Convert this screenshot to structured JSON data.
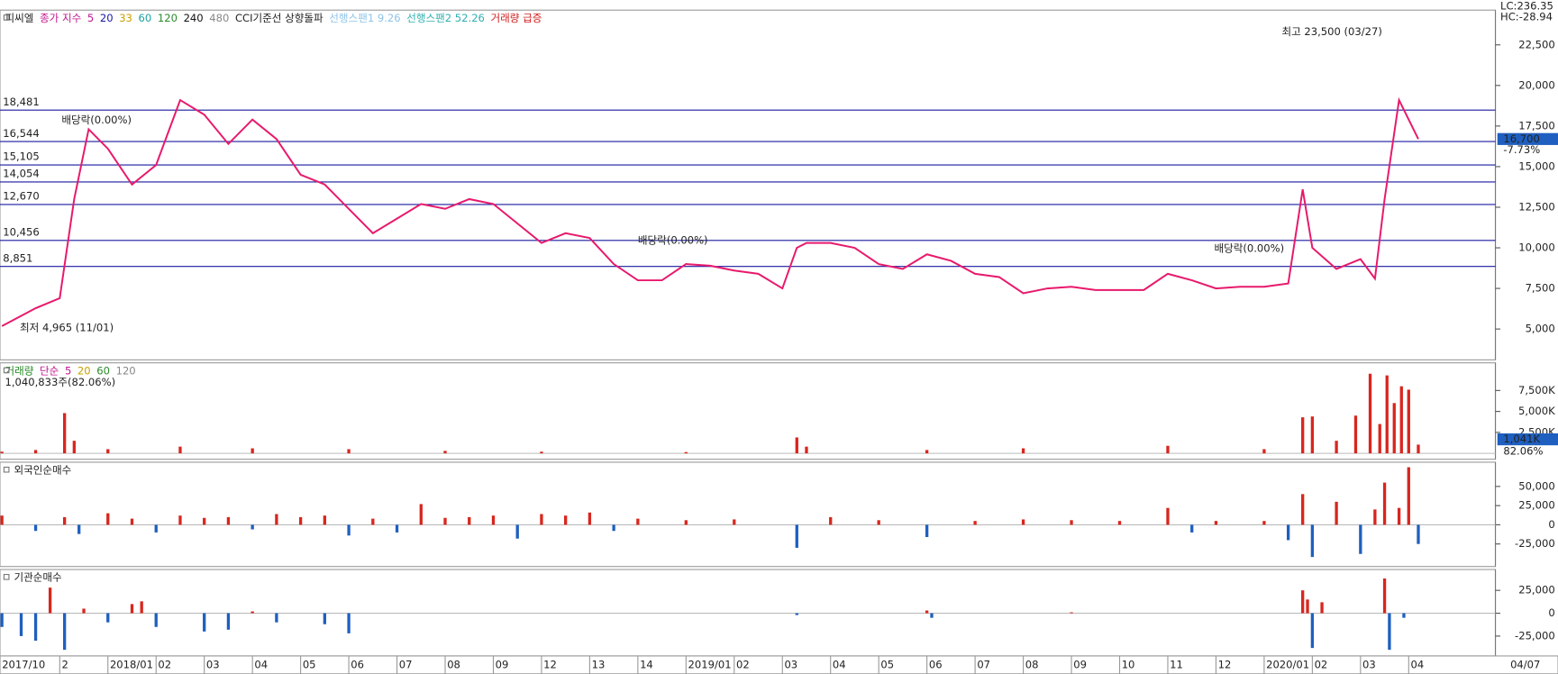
{
  "chart_data": [
    {
      "type": "line",
      "header": [
        {
          "text": "피씨엘",
          "color": "#222222"
        },
        {
          "text": "종가 지수",
          "color": "#c0148c"
        },
        {
          "text": "5",
          "color": "#c0148c"
        },
        {
          "text": "20",
          "color": "#1a1aa0"
        },
        {
          "text": "33",
          "color": "#c8a000"
        },
        {
          "text": "60",
          "color": "#1aa0a0"
        },
        {
          "text": "120",
          "color": "#2a8a2a"
        },
        {
          "text": "240",
          "color": "#111111"
        },
        {
          "text": "480",
          "color": "#888888"
        },
        {
          "text": "CCI기준선 상향돌파",
          "color": "#222222"
        },
        {
          "text": "선행스팬1 9.26",
          "color": "#8fc4e8"
        },
        {
          "text": "선행스팬2 52.26",
          "color": "#30b0b0"
        },
        {
          "text": "거래량 급증",
          "color": "#d02020"
        }
      ],
      "lc_label": "LC:236.35",
      "hc_label": "HC:-28.94",
      "x": [
        0.8,
        1.5,
        2.0,
        2.3,
        2.6,
        3.0,
        3.5,
        4.0,
        4.5,
        5.0,
        5.5,
        6.0,
        6.5,
        7.0,
        7.5,
        8.0,
        8.5,
        9.0,
        9.5,
        10.0,
        10.5,
        11.0,
        11.5,
        12.0,
        12.5,
        13.0,
        13.5,
        14.0,
        14.5,
        15.0,
        15.5,
        16.0,
        16.5,
        17.0,
        17.3,
        17.5,
        18.0,
        18.5,
        19.0,
        19.5,
        20.0,
        20.5,
        21.0,
        21.5,
        22.0,
        22.5,
        23.0,
        23.5,
        24.0,
        24.5,
        25.0,
        25.5,
        26.0,
        26.5,
        27.0,
        27.5,
        27.8,
        28.0,
        28.5,
        29.0,
        29.3,
        29.5,
        29.8,
        30.0,
        30.2
      ],
      "series": [
        {
          "name": "5",
          "color": "#e8196c",
          "values": [
            5180,
            6280,
            6900,
            13000,
            17300,
            16100,
            13900,
            15100,
            19100,
            18200,
            16400,
            17900,
            16700,
            14500,
            13900,
            12400,
            10900,
            11800,
            12700,
            12400,
            13000,
            12700,
            11500,
            10300,
            10900,
            10600,
            9000,
            8000,
            8000,
            9000,
            8900,
            8600,
            8400,
            7500,
            10000,
            10300,
            10300,
            10000,
            9000,
            8700,
            9600,
            9200,
            8400,
            8200,
            7200,
            7500,
            7600,
            7400,
            7400,
            7400,
            8400,
            8000,
            7500,
            7600,
            7600,
            7800,
            13600,
            10000,
            8700,
            9300,
            8100,
            13000,
            19100,
            17900,
            16700
          ]
        }
      ],
      "xlim": [
        0.76,
        31.8
      ],
      "ylim": [
        3100,
        24640
      ],
      "yticks": [
        {
          "value": 5000,
          "label": "5,000"
        },
        {
          "value": 7500,
          "label": "7,500"
        },
        {
          "value": 10000,
          "label": "10,000"
        },
        {
          "value": 12500,
          "label": "12,500"
        },
        {
          "value": 15000,
          "label": "15,000"
        },
        {
          "value": 17500,
          "label": "17,500"
        },
        {
          "value": 20000,
          "label": "20,000"
        },
        {
          "value": 22500,
          "label": "22,500"
        }
      ],
      "levels": [
        {
          "value": 18481,
          "label": "18,481"
        },
        {
          "value": 16544,
          "label": "16,544"
        },
        {
          "value": 15105,
          "label": "15,105"
        },
        {
          "value": 14054,
          "label": "14,054"
        },
        {
          "value": 12670,
          "label": "12,670"
        },
        {
          "value": 10456,
          "label": "10,456"
        },
        {
          "value": 8851,
          "label": "8,851"
        }
      ],
      "level_color": "#1a1aa0",
      "last_price": {
        "value": 16700,
        "label": "16,700"
      },
      "change": "-7.73%",
      "high_label": "최고 23,500 (03/27)",
      "low_label": "최저 4,965 (11/01)",
      "ex_dividend": [
        "배당락(0.00%)",
        "배당락(0.00%)",
        "배당락(0.00%)"
      ]
    },
    {
      "type": "bar",
      "header": [
        {
          "text": "거래량",
          "color": "#2a8a2a"
        },
        {
          "text": "단순",
          "color": "#c0148c"
        },
        {
          "text": "5",
          "color": "#c0148c"
        },
        {
          "text": "20",
          "color": "#c8a000"
        },
        {
          "text": "60",
          "color": "#2a8a2a"
        },
        {
          "text": "120",
          "color": "#888888"
        }
      ],
      "subtitle": "1,040,833주(82.06%)",
      "last_tag": "1,041K",
      "last_ratio": "82.06%",
      "color": "#d8261e",
      "x": [
        0.8,
        1.5,
        2.1,
        2.3,
        3.0,
        4.5,
        6.0,
        8.0,
        10.0,
        12.0,
        15.0,
        17.3,
        17.5,
        20.0,
        22.0,
        25.0,
        27.0,
        27.8,
        28.0,
        28.5,
        28.9,
        29.2,
        29.4,
        29.55,
        29.7,
        29.85,
        30.0,
        30.2
      ],
      "values": [
        200,
        400,
        4800,
        1500,
        500,
        800,
        600,
        500,
        300,
        200,
        150,
        1900,
        800,
        400,
        600,
        900,
        500,
        4300,
        4400,
        1500,
        4500,
        9500,
        3500,
        9300,
        6000,
        8000,
        7600,
        1041
      ],
      "xlim": [
        0.76,
        31.8
      ],
      "ylim": [
        -700,
        10800
      ],
      "yticks": [
        {
          "value": 2500,
          "label": "2,500K"
        },
        {
          "value": 5000,
          "label": "5,000K"
        },
        {
          "value": 7500,
          "label": "7,500K"
        }
      ]
    },
    {
      "type": "bar",
      "title": "외국인순매수",
      "title_color": "#d02020",
      "up_color": "#d8261e",
      "down_color": "#1f5fbf",
      "x": [
        0.8,
        1.5,
        2.1,
        2.4,
        3.0,
        3.5,
        4.0,
        4.5,
        5.0,
        5.5,
        6.0,
        6.5,
        7.0,
        7.5,
        8.0,
        8.5,
        9.0,
        9.5,
        10.0,
        10.5,
        11.0,
        11.5,
        12.0,
        12.5,
        13.0,
        13.5,
        14.0,
        15.0,
        16.0,
        17.3,
        18.0,
        19.0,
        20.0,
        21.0,
        22.0,
        23.0,
        24.0,
        25.0,
        25.5,
        26.0,
        27.0,
        27.5,
        27.8,
        28.0,
        28.5,
        29.0,
        29.3,
        29.5,
        29.8,
        30.0,
        30.2
      ],
      "values": [
        12000,
        -8000,
        10000,
        -12000,
        15000,
        8000,
        -10000,
        12000,
        9000,
        10000,
        -6000,
        14000,
        10000,
        12000,
        -14000,
        8000,
        -10000,
        27000,
        9000,
        10000,
        12000,
        -18000,
        14000,
        12000,
        16000,
        -8000,
        8000,
        6000,
        7000,
        -30000,
        10000,
        6000,
        -16000,
        5000,
        7000,
        6000,
        5000,
        22000,
        -10000,
        5000,
        5000,
        -20000,
        40000,
        -42000,
        30000,
        -38000,
        20000,
        55000,
        22000,
        75000,
        -25000
      ],
      "xlim": [
        0.76,
        31.8
      ],
      "ylim": [
        -54400,
        81600
      ],
      "yticks": [
        {
          "value": -25000,
          "label": "-25,000"
        },
        0,
        {
          "value": 25000,
          "label": "25,000"
        },
        {
          "value": 50000,
          "label": "50,000"
        }
      ]
    },
    {
      "type": "bar",
      "title": "기관순매수",
      "title_color": "#d02020",
      "up_color": "#d8261e",
      "down_color": "#1f5fbf",
      "x": [
        0.8,
        1.2,
        1.5,
        1.8,
        2.1,
        2.5,
        3.0,
        3.5,
        3.7,
        4.0,
        5.0,
        5.5,
        6.0,
        6.5,
        7.5,
        8.0,
        17.3,
        20.0,
        20.1,
        23.0,
        27.8,
        27.9,
        28.0,
        28.2,
        29.5,
        29.6,
        29.9
      ],
      "values": [
        -15000,
        -25000,
        -30000,
        28000,
        -40000,
        5000,
        -10000,
        10000,
        13000,
        -15000,
        -20000,
        -18000,
        2000,
        -10000,
        -12000,
        -22000,
        -2000,
        3000,
        -5000,
        1000,
        25000,
        15000,
        -38000,
        12000,
        38000,
        -40000,
        -5000
      ],
      "xlim": [
        0.76,
        31.8
      ],
      "ylim": [
        -46700,
        47800
      ],
      "yticks": [
        {
          "value": -25000,
          "label": "-25,000"
        },
        0,
        {
          "value": 25000,
          "label": "25,000"
        }
      ],
      "xticks": [
        {
          "value": 0.76,
          "label": "2017/10"
        },
        2,
        {
          "value": 3,
          "label": "2018/01"
        },
        {
          "value": 4,
          "label": "02"
        },
        {
          "value": 5,
          "label": "03"
        },
        {
          "value": 6,
          "label": "04"
        },
        {
          "value": 7,
          "label": "05"
        },
        {
          "value": 8,
          "label": "06"
        },
        {
          "value": 9,
          "label": "07"
        },
        {
          "value": 10,
          "label": "08"
        },
        {
          "value": 11,
          "label": "09"
        },
        12,
        13,
        14,
        {
          "value": 15,
          "label": "2019/01"
        },
        {
          "value": 16,
          "label": "02"
        },
        {
          "value": 17,
          "label": "03"
        },
        {
          "value": 18,
          "label": "04"
        },
        {
          "value": 19,
          "label": "05"
        },
        {
          "value": 20,
          "label": "06"
        },
        {
          "value": 21,
          "label": "07"
        },
        {
          "value": 22,
          "label": "08"
        },
        {
          "value": 23,
          "label": "09"
        },
        {
          "value": 24,
          "label": "10"
        },
        {
          "value": 25,
          "label": "11"
        },
        {
          "value": 26,
          "label": "12"
        },
        {
          "value": 27,
          "label": "2020/01"
        },
        {
          "value": 28,
          "label": "02"
        },
        {
          "value": 29,
          "label": "03"
        },
        {
          "value": 30,
          "label": "04"
        }
      ],
      "current_date": "04/07"
    }
  ]
}
